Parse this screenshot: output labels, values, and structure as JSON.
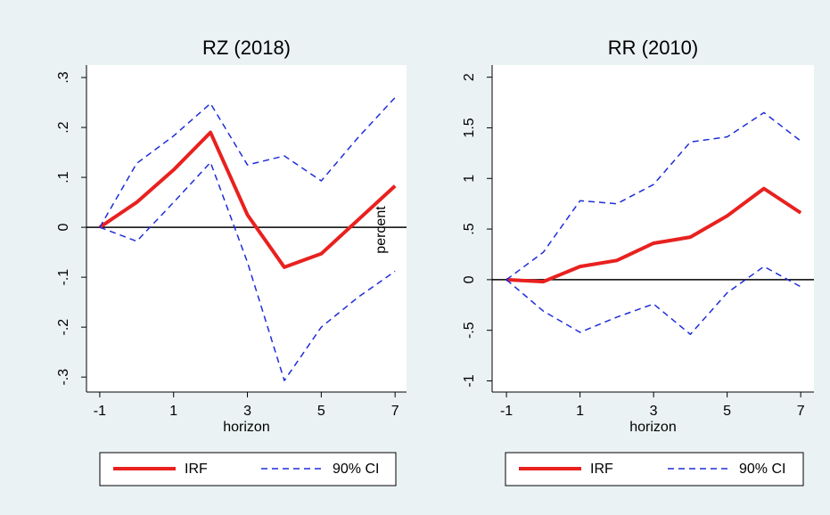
{
  "chart_data": [
    {
      "type": "line",
      "title": "RZ (2018)",
      "xlabel": "horizon",
      "ylabel": "percent",
      "x": [
        -1,
        0,
        1,
        2,
        3,
        4,
        5,
        6,
        7
      ],
      "xlim": [
        -1.36,
        7.31
      ],
      "xticks": [
        -1,
        1,
        3,
        5,
        7
      ],
      "ylim": [
        -0.33,
        0.325
      ],
      "yticks": [
        {
          "value": -0.3,
          "label": "-.3"
        },
        {
          "value": -0.2,
          "label": "-.2"
        },
        {
          "value": -0.1,
          "label": "-.1"
        },
        0,
        {
          "value": 0.1,
          "label": ".1"
        },
        {
          "value": 0.2,
          "label": ".2"
        },
        {
          "value": 0.3,
          "label": ".3"
        }
      ],
      "refline": 0,
      "series": [
        {
          "name": "IRF",
          "color": "#e8211f",
          "linestyle": "solid",
          "values": [
            0,
            0.05,
            0.115,
            0.19,
            0.025,
            -0.08,
            -0.053,
            0.015,
            0.083
          ]
        },
        {
          "name": "90% CI",
          "color": "#1f2dd8",
          "linestyle": "dashed",
          "values": [
            0,
            0.128,
            0.183,
            0.248,
            0.125,
            0.143,
            0.093,
            0.18,
            0.26
          ]
        },
        {
          "color": "#1f2dd8",
          "linestyle": "dashed",
          "values": [
            0,
            -0.028,
            0.05,
            0.13,
            -0.07,
            -0.307,
            -0.2,
            -0.14,
            -0.088
          ]
        }
      ]
    },
    {
      "type": "line",
      "title": "RR (2010)",
      "xlabel": "horizon",
      "x": [
        -1,
        0,
        1,
        2,
        3,
        4,
        5,
        6,
        7
      ],
      "xlim": [
        -1.39,
        7.36
      ],
      "xticks": [
        -1,
        1,
        3,
        5,
        7
      ],
      "ylim": [
        -1.11,
        2.12
      ],
      "yticks": [
        -1,
        {
          "value": -0.5,
          "label": "-.5"
        },
        0,
        {
          "value": 0.5,
          "label": ".5"
        },
        1,
        1.5,
        2
      ],
      "refline": 0,
      "series": [
        {
          "name": "IRF",
          "color": "#e8211f",
          "linestyle": "solid",
          "values": [
            0,
            -0.02,
            0.13,
            0.19,
            0.36,
            0.42,
            0.63,
            0.9,
            0.66
          ]
        },
        {
          "name": "90% CI",
          "color": "#1f2dd8",
          "linestyle": "dashed",
          "values": [
            0,
            0.27,
            0.78,
            0.75,
            0.94,
            1.36,
            1.41,
            1.65,
            1.37
          ]
        },
        {
          "color": "#1f2dd8",
          "linestyle": "dashed",
          "values": [
            0,
            -0.31,
            -0.52,
            -0.37,
            -0.24,
            -0.54,
            -0.13,
            0.13,
            -0.07
          ]
        }
      ]
    }
  ]
}
